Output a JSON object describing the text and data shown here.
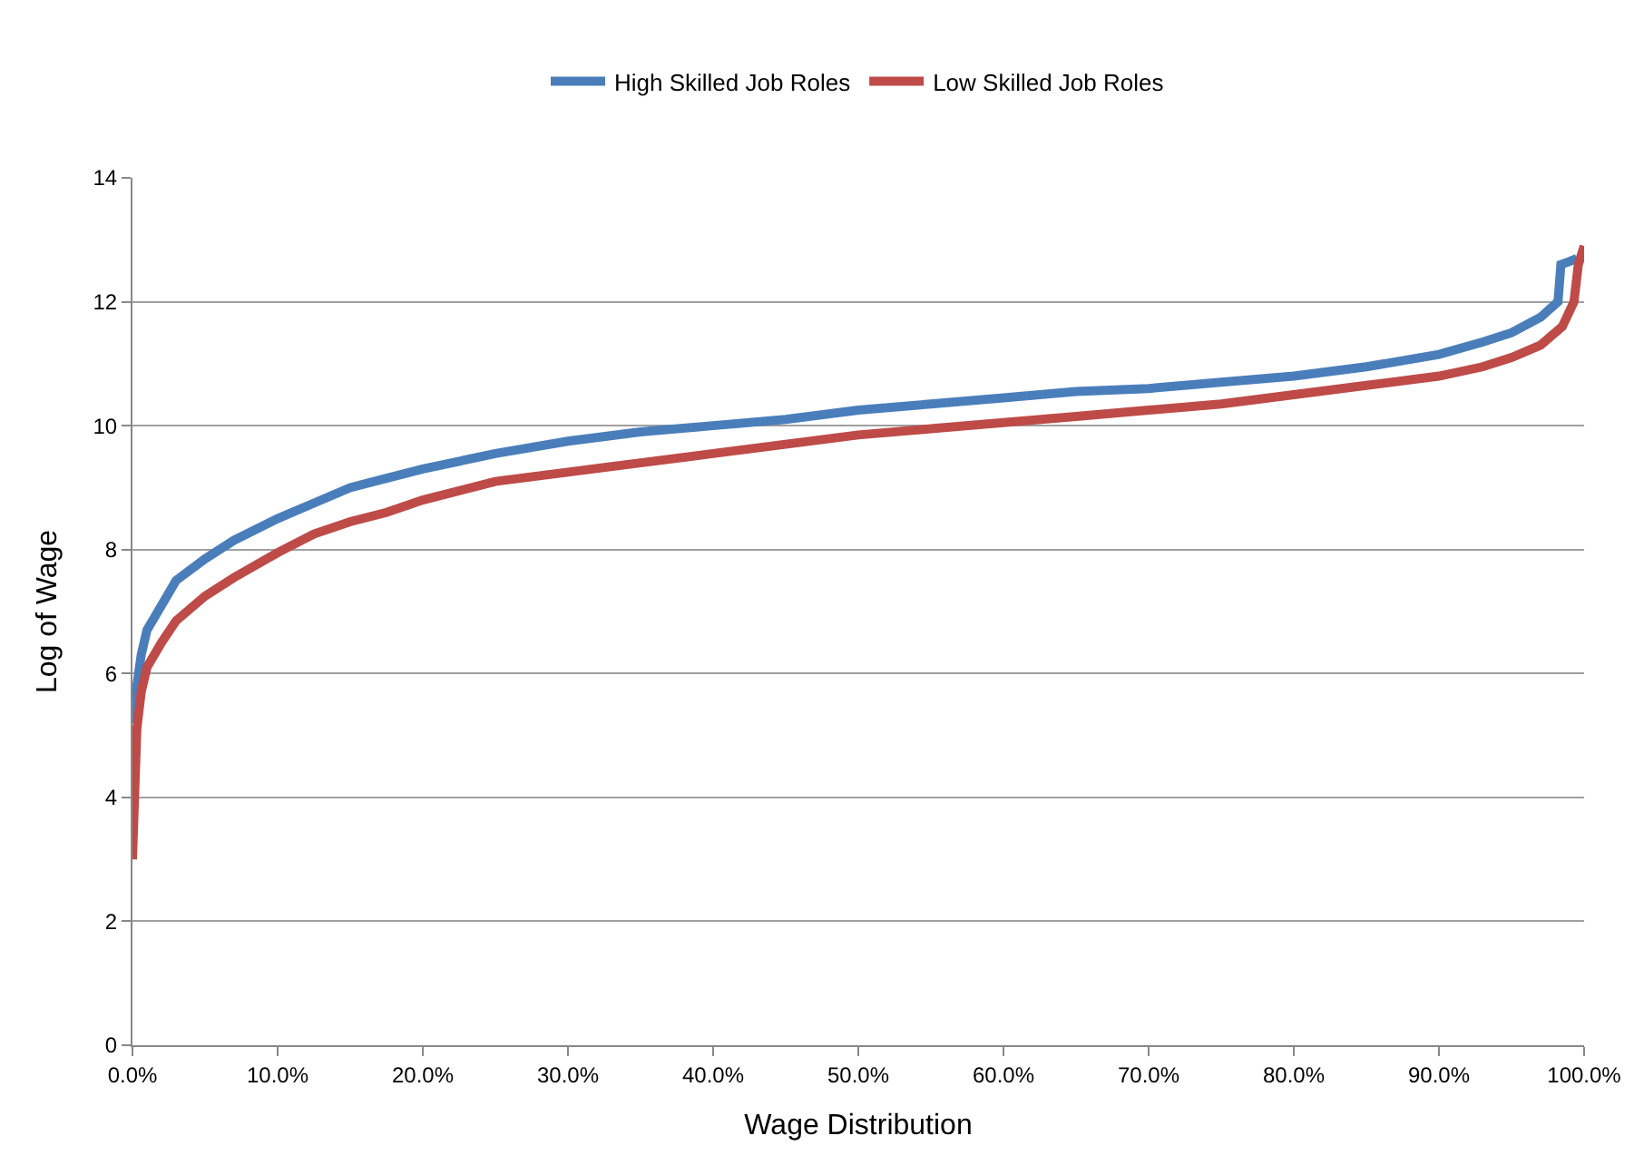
{
  "chart_data": {
    "type": "line",
    "xlabel": "Wage Distribution",
    "ylabel": "Log of Wage",
    "legend": "top",
    "grid": "y",
    "marker": "none",
    "line_style": "solid",
    "xlim": [
      0,
      100
    ],
    "ylim": [
      0,
      14
    ],
    "xticks": [
      {
        "value": 0,
        "label": "0.0%"
      },
      {
        "value": 10,
        "label": "10.0%"
      },
      {
        "value": 20,
        "label": "20.0%"
      },
      {
        "value": 30,
        "label": "30.0%"
      },
      {
        "value": 40,
        "label": "40.0%"
      },
      {
        "value": 50,
        "label": "50.0%"
      },
      {
        "value": 60,
        "label": "60.0%"
      },
      {
        "value": 70,
        "label": "70.0%"
      },
      {
        "value": 80,
        "label": "80.0%"
      },
      {
        "value": 90,
        "label": "90.0%"
      },
      {
        "value": 100,
        "label": "100.0%"
      }
    ],
    "yticks": [
      0,
      2,
      4,
      6,
      8,
      10,
      12,
      14
    ],
    "series": [
      {
        "name": "High Skilled Job Roles",
        "color": "#4a7ebb",
        "x": [
          0,
          0.3,
          0.6,
          1,
          2,
          3,
          5,
          7,
          10,
          12.5,
          15,
          17.5,
          20,
          25,
          30,
          35,
          40,
          45,
          50,
          55,
          60,
          65,
          70,
          75,
          80,
          85,
          90,
          93,
          95,
          97,
          98.2,
          98.4,
          99,
          99.5
        ],
        "values": [
          5.2,
          5.8,
          6.3,
          6.7,
          7.1,
          7.5,
          7.85,
          8.15,
          8.5,
          8.75,
          9.0,
          9.15,
          9.3,
          9.55,
          9.75,
          9.9,
          10.0,
          10.1,
          10.25,
          10.35,
          10.45,
          10.55,
          10.6,
          10.7,
          10.8,
          10.95,
          11.15,
          11.35,
          11.5,
          11.75,
          12.0,
          12.6,
          12.65,
          12.7
        ]
      },
      {
        "name": "Low Skilled Job Roles",
        "color": "#be4b48",
        "x": [
          0,
          0.3,
          0.6,
          1,
          2,
          3,
          5,
          7,
          10,
          12.5,
          15,
          17.5,
          20,
          25,
          30,
          35,
          40,
          45,
          50,
          55,
          60,
          65,
          70,
          75,
          80,
          85,
          90,
          93,
          95,
          97,
          98.5,
          99.3,
          99.6,
          100
        ],
        "values": [
          3.0,
          5.1,
          5.7,
          6.1,
          6.5,
          6.85,
          7.25,
          7.55,
          7.95,
          8.25,
          8.45,
          8.6,
          8.8,
          9.1,
          9.25,
          9.4,
          9.55,
          9.7,
          9.85,
          9.95,
          10.05,
          10.15,
          10.25,
          10.35,
          10.5,
          10.65,
          10.8,
          10.95,
          11.1,
          11.3,
          11.6,
          12.0,
          12.6,
          12.9
        ]
      }
    ]
  }
}
